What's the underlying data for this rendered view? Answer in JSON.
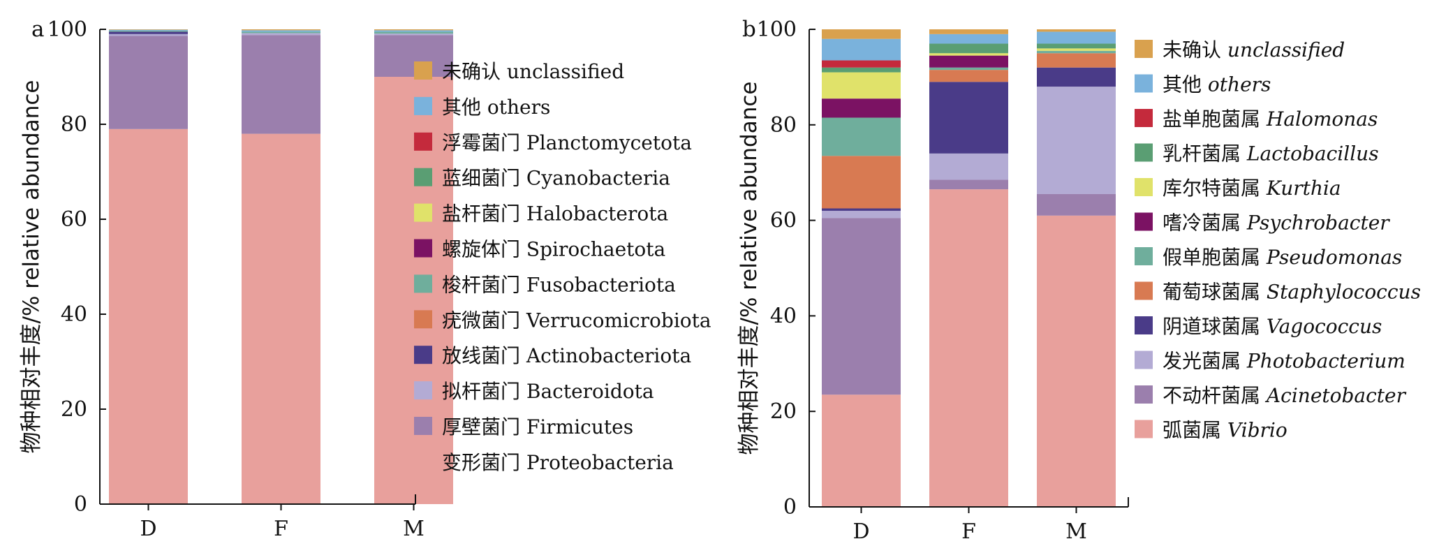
{
  "chart_data": [
    {
      "type": "bar",
      "stacked": true,
      "panel_label": "a",
      "ylabel": "物种相对丰度/% relative abundance",
      "ylim": [
        0,
        100
      ],
      "yticks": [
        0,
        20,
        40,
        60,
        80,
        100
      ],
      "categories": [
        "D",
        "F",
        "M"
      ],
      "legend_position": "right",
      "series": [
        {
          "name": "变形菌门 Proteobacteria",
          "color": "#e8a09c",
          "values": [
            79.0,
            78.0,
            90.0
          ]
        },
        {
          "name": "厚壁菌门 Firmicutes",
          "color": "#9b7fad",
          "values": [
            19.6,
            20.8,
            8.8
          ]
        },
        {
          "name": "拟杆菌门 Bacteroidota",
          "color": "#b3abd4",
          "values": [
            0.4,
            0.4,
            0.3
          ]
        },
        {
          "name": "放线菌门 Actinobacteriota",
          "color": "#4a3b88",
          "values": [
            0.5,
            0.0,
            0.0
          ]
        },
        {
          "name": "疣微菌门 Verrucomicrobiota",
          "color": "#d87a52",
          "values": [
            0.0,
            0.0,
            0.0
          ]
        },
        {
          "name": "梭杆菌门 Fusobacteriota",
          "color": "#6fae9c",
          "values": [
            0.2,
            0.3,
            0.4
          ]
        },
        {
          "name": "螺旋体门 Spirochaetota",
          "color": "#7b1263",
          "values": [
            0.0,
            0.0,
            0.0
          ]
        },
        {
          "name": "盐杆菌门 Halobacterota",
          "color": "#e0e26a",
          "values": [
            0.0,
            0.0,
            0.0
          ]
        },
        {
          "name": "蓝细菌门 Cyanobacteria",
          "color": "#5a9e73",
          "values": [
            0.0,
            0.0,
            0.0
          ]
        },
        {
          "name": "浮霉菌门 Planctomycetota",
          "color": "#c42a3c",
          "values": [
            0.0,
            0.0,
            0.0
          ]
        },
        {
          "name": "其他 others",
          "color": "#7ab2dc",
          "values": [
            0.2,
            0.3,
            0.3
          ]
        },
        {
          "name": "未确认 unclassified",
          "color": "#d9a14e",
          "values": [
            0.1,
            0.2,
            0.2
          ]
        }
      ]
    },
    {
      "type": "bar",
      "stacked": true,
      "panel_label": "b",
      "ylabel": "物种相对丰度/% relative abundance",
      "ylim": [
        0,
        100
      ],
      "yticks": [
        0,
        20,
        40,
        60,
        80,
        100
      ],
      "categories": [
        "D",
        "F",
        "M"
      ],
      "legend_position": "right",
      "series": [
        {
          "name_cn": "弧菌属",
          "name_latin": "Vibrio",
          "color": "#e8a09c",
          "values": [
            23.5,
            66.5,
            61.0
          ]
        },
        {
          "name_cn": "不动杆菌属",
          "name_latin": "Acinetobacter",
          "color": "#9b7fad",
          "values": [
            37.0,
            2.0,
            4.5
          ]
        },
        {
          "name_cn": "发光菌属",
          "name_latin": "Photobacterium",
          "color": "#b3abd4",
          "values": [
            1.5,
            5.5,
            22.5
          ]
        },
        {
          "name_cn": "阴道球菌属",
          "name_latin": "Vagococcus",
          "color": "#4a3b88",
          "values": [
            0.5,
            15.0,
            4.0
          ]
        },
        {
          "name_cn": "葡萄球菌属",
          "name_latin": "Staphylococcus",
          "color": "#d87a52",
          "values": [
            11.0,
            2.5,
            3.0
          ]
        },
        {
          "name_cn": "假单胞菌属",
          "name_latin": "Pseudomonas",
          "color": "#6fae9c",
          "values": [
            8.0,
            0.5,
            0.5
          ]
        },
        {
          "name_cn": "嗜冷菌属",
          "name_latin": "Psychrobacter",
          "color": "#7b1263",
          "values": [
            4.0,
            2.5,
            0.0
          ]
        },
        {
          "name_cn": "库尔特菌属",
          "name_latin": "Kurthia",
          "color": "#e0e26a",
          "values": [
            5.5,
            0.5,
            0.5
          ]
        },
        {
          "name_cn": "乳杆菌属",
          "name_latin": "Lactobacillus",
          "color": "#5a9e73",
          "values": [
            1.0,
            2.0,
            1.0
          ]
        },
        {
          "name_cn": "盐单胞菌属",
          "name_latin": "Halomonas",
          "color": "#c42a3c",
          "values": [
            1.5,
            0.0,
            0.0
          ]
        },
        {
          "name_cn": "其他",
          "name_latin": "others",
          "color": "#7ab2dc",
          "values": [
            4.5,
            2.0,
            2.5
          ]
        },
        {
          "name_cn": "未确认",
          "name_latin": "unclassified",
          "color": "#d9a14e",
          "values": [
            2.0,
            1.0,
            0.5
          ]
        }
      ]
    }
  ]
}
